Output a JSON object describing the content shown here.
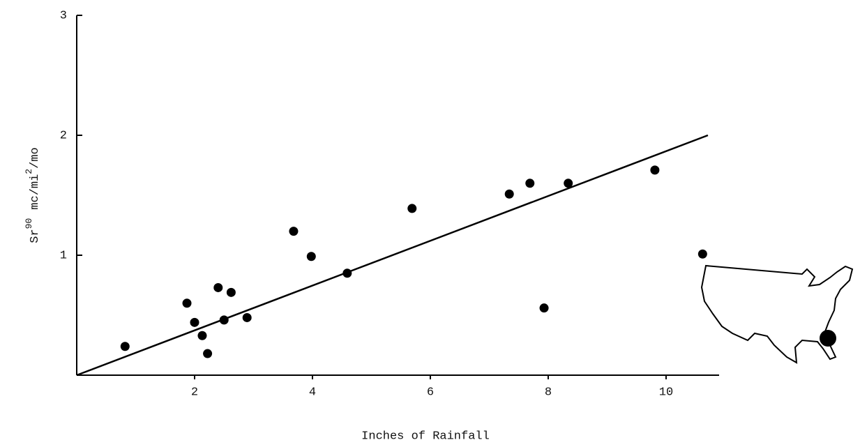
{
  "chart_data": {
    "type": "scatter",
    "x_label": "Inches of Rainfall",
    "y_label": [
      "Sr",
      "90",
      "mc/mi",
      "2",
      "/mo"
    ],
    "x": [
      0.82,
      1.87,
      2.0,
      2.13,
      2.22,
      2.4,
      2.5,
      2.62,
      2.89,
      3.68,
      3.98,
      4.59,
      5.69,
      7.34,
      7.69,
      7.93,
      8.34,
      9.81,
      10.62
    ],
    "values": [
      0.24,
      0.6,
      0.44,
      0.33,
      0.18,
      0.73,
      0.46,
      0.69,
      0.48,
      1.2,
      0.99,
      0.85,
      1.39,
      1.51,
      1.6,
      0.56,
      1.6,
      1.71,
      1.01
    ],
    "color": "#000000",
    "fit_line": {
      "x": [
        0,
        10.71
      ],
      "y": [
        0,
        2.0
      ]
    },
    "xlim": [
      0,
      10.9
    ],
    "ylim": [
      0,
      3
    ],
    "xticks": [
      2,
      4,
      6,
      8,
      10
    ],
    "yticks": [
      1,
      2,
      3
    ]
  }
}
